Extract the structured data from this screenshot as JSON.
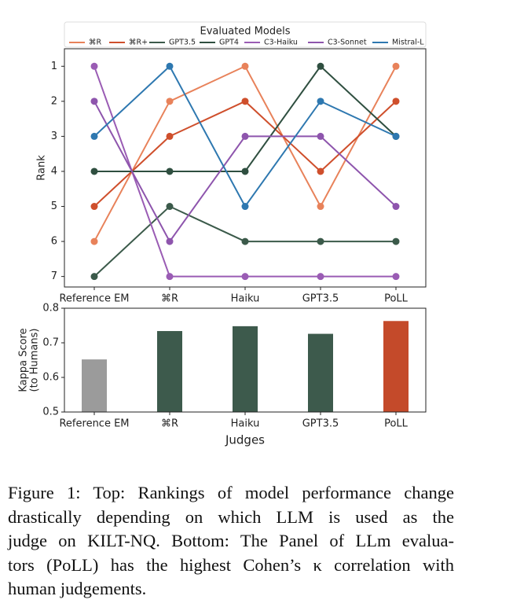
{
  "chart_data": [
    {
      "type": "line",
      "legend_title": "Evaluated Models",
      "ylabel": "Rank",
      "categories": [
        "Reference EM",
        "⌘R",
        "Haiku",
        "GPT3.5",
        "PoLL"
      ],
      "ylim": [
        7.3,
        0.5
      ],
      "yticks": [
        1,
        2,
        3,
        4,
        5,
        6,
        7
      ],
      "legend": "top",
      "series": [
        {
          "name": "⌘R",
          "color": "#e8825a",
          "values": [
            6,
            2,
            1,
            5,
            1
          ]
        },
        {
          "name": "⌘R+",
          "color": "#cf4f2c",
          "values": [
            5,
            3,
            2,
            4,
            2
          ]
        },
        {
          "name": "GPT3.5",
          "color": "#3b5a4a",
          "values": [
            7,
            5,
            6,
            6,
            6
          ]
        },
        {
          "name": "GPT4",
          "color": "#2f4f40",
          "values": [
            4,
            4,
            4,
            1,
            3
          ]
        },
        {
          "name": "C3-Haiku",
          "color": "#9a5cb4",
          "values": [
            1,
            7,
            7,
            7,
            7
          ]
        },
        {
          "name": "C3-Sonnet",
          "color": "#8e55ad",
          "values": [
            2,
            6,
            3,
            3,
            5
          ]
        },
        {
          "name": "Mistral-L",
          "color": "#2e78b0",
          "values": [
            3,
            1,
            5,
            2,
            3
          ]
        }
      ]
    },
    {
      "type": "bar",
      "xlabel": "Judges",
      "ylabel": [
        "Kappa Score",
        "(to Humans)"
      ],
      "categories": [
        "Reference EM",
        "⌘R",
        "Haiku",
        "GPT3.5",
        "PoLL"
      ],
      "values": [
        0.652,
        0.734,
        0.748,
        0.726,
        0.763
      ],
      "colors": [
        "#9b9b9b",
        "#3d5a4c",
        "#3d5a4c",
        "#3d5a4c",
        "#c44a2a"
      ],
      "ylim": [
        0.5,
        0.8
      ],
      "yticks": [
        0.5,
        0.6,
        0.7,
        0.8
      ]
    }
  ],
  "caption": [
    "Figure 1: Top: Rankings of model performance change",
    "drastically depending on which LLM is used as the",
    "judge on KILT-NQ. Bottom: The Panel of LLm evalua-",
    "tors (PoLL) has the highest Cohen’s κ correlation with",
    "human judgements."
  ]
}
